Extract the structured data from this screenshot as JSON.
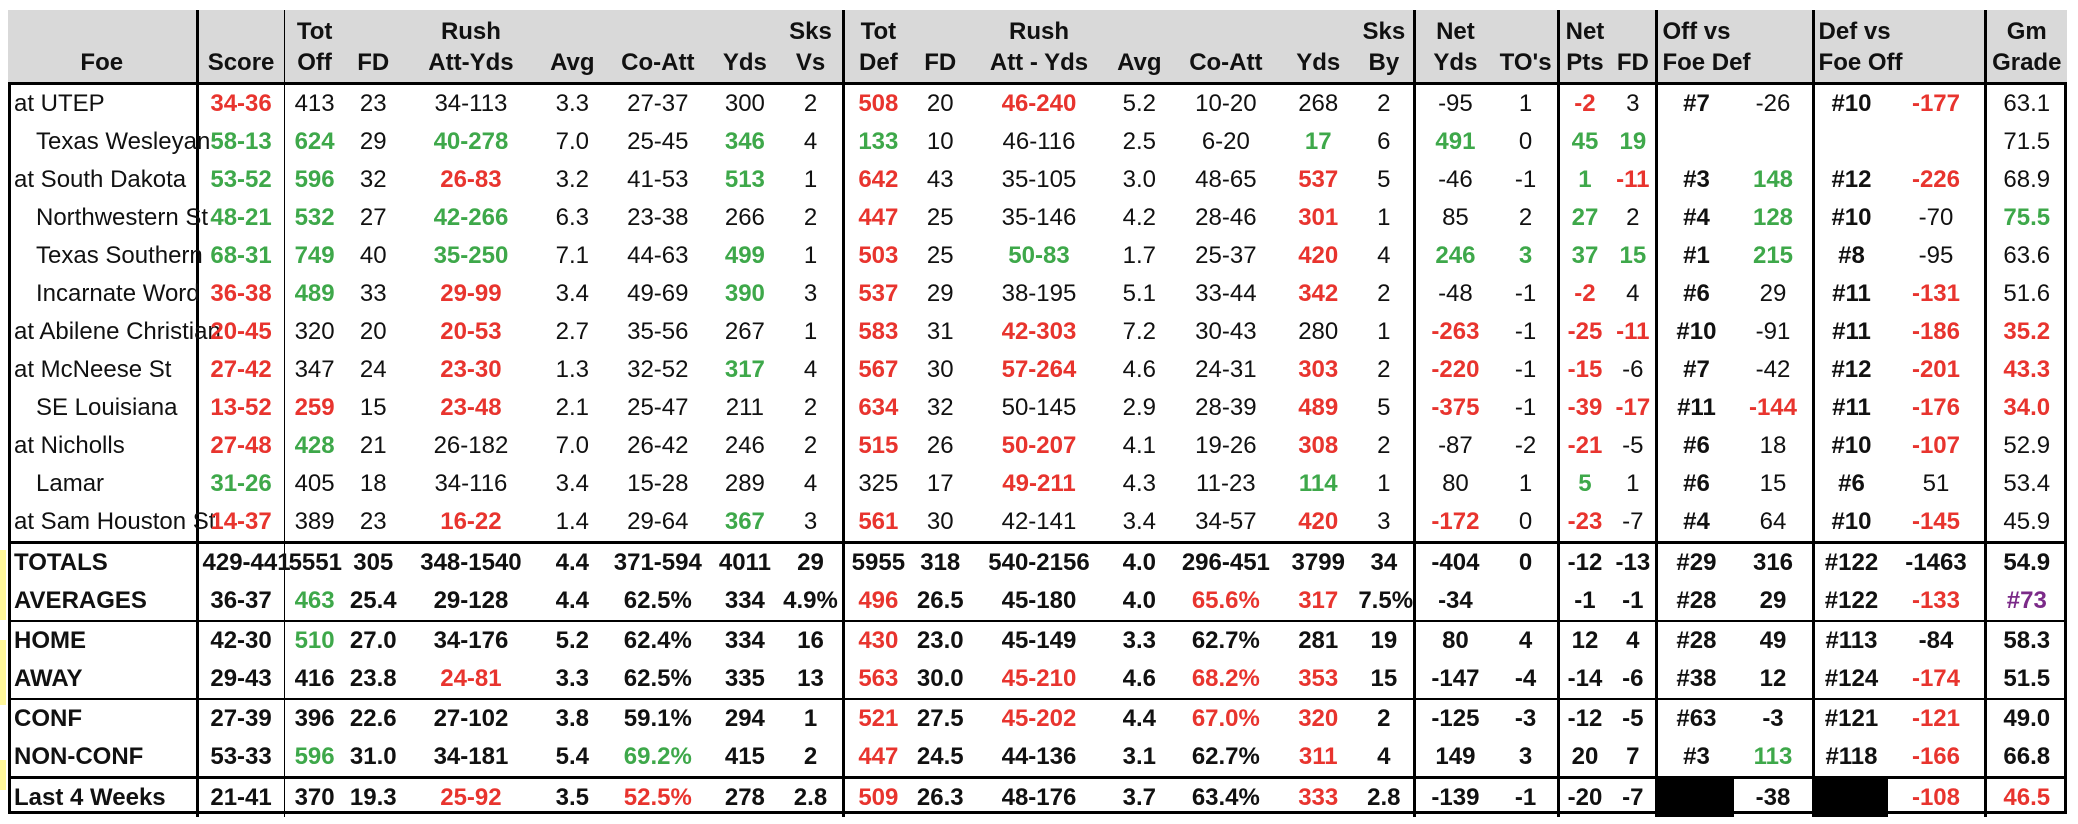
{
  "header": {
    "row1": [
      "",
      "",
      "Tot",
      "",
      "Rush",
      "",
      "",
      "",
      "Sks",
      "Tot",
      "",
      "Rush",
      "",
      "",
      "",
      "Sks",
      "Net",
      "",
      "Net",
      "",
      "Off vs",
      "",
      "Def vs",
      "",
      "Gm"
    ],
    "row2": [
      "Foe",
      "Score",
      "Off",
      "FD",
      "Att-Yds",
      "Avg",
      "Co-Att",
      "Yds",
      "Vs",
      "Def",
      "FD",
      "Att - Yds",
      "Avg",
      "Co-Att",
      "Yds",
      "By",
      "Yds",
      "TO's",
      "Pts",
      "FD",
      "Foe Def",
      "",
      "Foe Off",
      "",
      "Grade"
    ]
  },
  "games": [
    {
      "cells": [
        "at UTEP",
        "34-36",
        "413",
        "23",
        "34-113",
        "3.3",
        "27-37",
        "300",
        "2",
        "508",
        "20",
        "46-240",
        "5.2",
        "10-20",
        "268",
        "2",
        "-95",
        "1",
        "-2",
        "3",
        "#7",
        "-26",
        "#10",
        "-177",
        "63.1"
      ],
      "styles": [
        "",
        "r",
        "",
        "",
        "",
        "",
        "",
        "",
        "",
        "r",
        "",
        "r",
        "",
        "",
        "",
        "",
        "",
        "",
        "r",
        "",
        "b",
        "",
        "b",
        "r",
        ""
      ]
    },
    {
      "cells": [
        "Texas Wesleyan",
        "58-13",
        "624",
        "29",
        "40-278",
        "7.0",
        "25-45",
        "346",
        "4",
        "133",
        "10",
        "46-116",
        "2.5",
        "6-20",
        "17",
        "6",
        "491",
        "0",
        "45",
        "19",
        "",
        "",
        "",
        "",
        "71.5"
      ],
      "styles": [
        "",
        "g",
        "g",
        "",
        "g",
        "",
        "",
        "g",
        "",
        "g",
        "",
        "",
        "",
        "",
        "g",
        "",
        "g",
        "",
        "g",
        "g",
        "",
        "",
        "",
        "",
        ""
      ]
    },
    {
      "cells": [
        "at South Dakota",
        "53-52",
        "596",
        "32",
        "26-83",
        "3.2",
        "41-53",
        "513",
        "1",
        "642",
        "43",
        "35-105",
        "3.0",
        "48-65",
        "537",
        "5",
        "-46",
        "-1",
        "1",
        "-11",
        "#3",
        "148",
        "#12",
        "-226",
        "68.9"
      ],
      "styles": [
        "",
        "g",
        "g",
        "",
        "r",
        "",
        "",
        "g",
        "",
        "r",
        "",
        "",
        "",
        "",
        "r",
        "",
        "",
        "",
        "g",
        "r",
        "b",
        "g",
        "b",
        "r",
        ""
      ]
    },
    {
      "cells": [
        "Northwestern St",
        "48-21",
        "532",
        "27",
        "42-266",
        "6.3",
        "23-38",
        "266",
        "2",
        "447",
        "25",
        "35-146",
        "4.2",
        "28-46",
        "301",
        "1",
        "85",
        "2",
        "27",
        "2",
        "#4",
        "128",
        "#10",
        "-70",
        "75.5"
      ],
      "styles": [
        "",
        "g",
        "g",
        "",
        "g",
        "",
        "",
        "",
        "",
        "r",
        "",
        "",
        "",
        "",
        "r",
        "",
        "",
        "",
        "g",
        "",
        "b",
        "g",
        "b",
        "",
        "g"
      ]
    },
    {
      "cells": [
        "Texas Southern",
        "68-31",
        "749",
        "40",
        "35-250",
        "7.1",
        "44-63",
        "499",
        "1",
        "503",
        "25",
        "50-83",
        "1.7",
        "25-37",
        "420",
        "4",
        "246",
        "3",
        "37",
        "15",
        "#1",
        "215",
        "#8",
        "-95",
        "63.6"
      ],
      "styles": [
        "",
        "g",
        "g",
        "",
        "g",
        "",
        "",
        "g",
        "",
        "r",
        "",
        "g",
        "",
        "",
        "r",
        "",
        "g",
        "g",
        "g",
        "g",
        "b",
        "g",
        "b",
        "",
        ""
      ]
    },
    {
      "cells": [
        "Incarnate Word",
        "36-38",
        "489",
        "33",
        "29-99",
        "3.4",
        "49-69",
        "390",
        "3",
        "537",
        "29",
        "38-195",
        "5.1",
        "33-44",
        "342",
        "2",
        "-48",
        "-1",
        "-2",
        "4",
        "#6",
        "29",
        "#11",
        "-131",
        "51.6"
      ],
      "styles": [
        "",
        "r",
        "g",
        "",
        "r",
        "",
        "",
        "g",
        "",
        "r",
        "",
        "",
        "",
        "",
        "r",
        "",
        "",
        "",
        "r",
        "",
        "b",
        "",
        "b",
        "r",
        ""
      ]
    },
    {
      "cells": [
        "at Abilene Christian",
        "20-45",
        "320",
        "20",
        "20-53",
        "2.7",
        "35-56",
        "267",
        "1",
        "583",
        "31",
        "42-303",
        "7.2",
        "30-43",
        "280",
        "1",
        "-263",
        "-1",
        "-25",
        "-11",
        "#10",
        "-91",
        "#11",
        "-186",
        "35.2"
      ],
      "styles": [
        "",
        "r",
        "",
        "",
        "r",
        "",
        "",
        "",
        "",
        "r",
        "",
        "r",
        "",
        "",
        "",
        "",
        "r",
        "",
        "r",
        "r",
        "b",
        "",
        "b",
        "r",
        "r"
      ]
    },
    {
      "cells": [
        "at McNeese St",
        "27-42",
        "347",
        "24",
        "23-30",
        "1.3",
        "32-52",
        "317",
        "4",
        "567",
        "30",
        "57-264",
        "4.6",
        "24-31",
        "303",
        "2",
        "-220",
        "-1",
        "-15",
        "-6",
        "#7",
        "-42",
        "#12",
        "-201",
        "43.3"
      ],
      "styles": [
        "",
        "r",
        "",
        "",
        "r",
        "",
        "",
        "g",
        "",
        "r",
        "",
        "r",
        "",
        "",
        "r",
        "",
        "r",
        "",
        "r",
        "",
        "b",
        "",
        "b",
        "r",
        "r"
      ]
    },
    {
      "cells": [
        "SE Louisiana",
        "13-52",
        "259",
        "15",
        "23-48",
        "2.1",
        "25-47",
        "211",
        "2",
        "634",
        "32",
        "50-145",
        "2.9",
        "28-39",
        "489",
        "5",
        "-375",
        "-1",
        "-39",
        "-17",
        "#11",
        "-144",
        "#11",
        "-176",
        "34.0"
      ],
      "styles": [
        "",
        "r",
        "r",
        "",
        "r",
        "",
        "",
        "",
        "",
        "r",
        "",
        "",
        "",
        "",
        "r",
        "",
        "r",
        "",
        "r",
        "r",
        "b",
        "r",
        "b",
        "r",
        "r"
      ]
    },
    {
      "cells": [
        "at Nicholls",
        "27-48",
        "428",
        "21",
        "26-182",
        "7.0",
        "26-42",
        "246",
        "2",
        "515",
        "26",
        "50-207",
        "4.1",
        "19-26",
        "308",
        "2",
        "-87",
        "-2",
        "-21",
        "-5",
        "#6",
        "18",
        "#10",
        "-107",
        "52.9"
      ],
      "styles": [
        "",
        "r",
        "g",
        "",
        "",
        "",
        "",
        "",
        "",
        "r",
        "",
        "r",
        "",
        "",
        "r",
        "",
        "",
        "",
        "r",
        "",
        "b",
        "",
        "b",
        "r",
        ""
      ]
    },
    {
      "cells": [
        "Lamar",
        "31-26",
        "405",
        "18",
        "34-116",
        "3.4",
        "15-28",
        "289",
        "4",
        "325",
        "17",
        "49-211",
        "4.3",
        "11-23",
        "114",
        "1",
        "80",
        "1",
        "5",
        "1",
        "#6",
        "15",
        "#6",
        "51",
        "53.4"
      ],
      "styles": [
        "",
        "g",
        "",
        "",
        "",
        "",
        "",
        "",
        "",
        "",
        "",
        "r",
        "",
        "",
        "g",
        "",
        "",
        "",
        "g",
        "",
        "b",
        "",
        "b",
        "",
        ""
      ]
    },
    {
      "cells": [
        "at Sam Houston St",
        "14-37",
        "389",
        "23",
        "16-22",
        "1.4",
        "29-64",
        "367",
        "3",
        "561",
        "30",
        "42-141",
        "3.4",
        "34-57",
        "420",
        "3",
        "-172",
        "0",
        "-23",
        "-7",
        "#4",
        "64",
        "#10",
        "-145",
        "45.9"
      ],
      "styles": [
        "",
        "r",
        "",
        "",
        "r",
        "",
        "",
        "g",
        "",
        "r",
        "",
        "",
        "",
        "",
        "r",
        "",
        "r",
        "",
        "r",
        "",
        "b",
        "",
        "b",
        "r",
        ""
      ]
    }
  ],
  "summary": [
    {
      "cells": [
        "TOTALS",
        "429-441",
        "5551",
        "305",
        "348-1540",
        "4.4",
        "371-594",
        "4011",
        "29",
        "5955",
        "318",
        "540-2156",
        "4.0",
        "296-451",
        "3799",
        "34",
        "-404",
        "0",
        "-12",
        "-13",
        "#29",
        "316",
        "#122",
        "-1463",
        "54.9"
      ],
      "styles": [
        "",
        "",
        "",
        "",
        "",
        "",
        "",
        "",
        "",
        "",
        "",
        "",
        "",
        "",
        "",
        "",
        "",
        "",
        "",
        "",
        "",
        "",
        "",
        "",
        ""
      ]
    },
    {
      "cells": [
        "AVERAGES",
        "36-37",
        "463",
        "25.4",
        "29-128",
        "4.4",
        "62.5%",
        "334",
        "4.9%",
        "496",
        "26.5",
        "45-180",
        "4.0",
        "65.6%",
        "317",
        "7.5%",
        "-34",
        "",
        "-1",
        "-1",
        "#28",
        "29",
        "#122",
        "-133",
        "#73"
      ],
      "styles": [
        "",
        "",
        "g",
        "",
        "",
        "",
        "",
        "",
        "",
        "r",
        "",
        "",
        "",
        "r",
        "r",
        "",
        "",
        "",
        "",
        "",
        "",
        "",
        "",
        "r",
        "p"
      ]
    },
    {
      "cells": [
        "HOME",
        "42-30",
        "510",
        "27.0",
        "34-176",
        "5.2",
        "62.4%",
        "334",
        "16",
        "430",
        "23.0",
        "45-149",
        "3.3",
        "62.7%",
        "281",
        "19",
        "80",
        "4",
        "12",
        "4",
        "#28",
        "49",
        "#113",
        "-84",
        "58.3"
      ],
      "styles": [
        "",
        "",
        "g",
        "",
        "",
        "",
        "",
        "",
        "",
        "r",
        "",
        "",
        "",
        "",
        "",
        "",
        "",
        "",
        "",
        "",
        "",
        "",
        "",
        "",
        ""
      ]
    },
    {
      "cells": [
        "AWAY",
        "29-43",
        "416",
        "23.8",
        "24-81",
        "3.3",
        "62.5%",
        "335",
        "13",
        "563",
        "30.0",
        "45-210",
        "4.6",
        "68.2%",
        "353",
        "15",
        "-147",
        "-4",
        "-14",
        "-6",
        "#38",
        "12",
        "#124",
        "-174",
        "51.5"
      ],
      "styles": [
        "",
        "",
        "",
        "",
        "r",
        "",
        "",
        "",
        "",
        "r",
        "",
        "r",
        "",
        "r",
        "r",
        "",
        "",
        "",
        "",
        "",
        "",
        "",
        "",
        "r",
        ""
      ]
    },
    {
      "cells": [
        "CONF",
        "27-39",
        "396",
        "22.6",
        "27-102",
        "3.8",
        "59.1%",
        "294",
        "1",
        "521",
        "27.5",
        "45-202",
        "4.4",
        "67.0%",
        "320",
        "2",
        "-125",
        "-3",
        "-12",
        "-5",
        "#63",
        "-3",
        "#121",
        "-121",
        "49.0"
      ],
      "styles": [
        "",
        "",
        "",
        "",
        "",
        "",
        "",
        "",
        "",
        "r",
        "",
        "r",
        "",
        "r",
        "r",
        "",
        "",
        "",
        "",
        "",
        "",
        "",
        "",
        "r",
        ""
      ]
    },
    {
      "cells": [
        "NON-CONF",
        "53-33",
        "596",
        "31.0",
        "34-181",
        "5.4",
        "69.2%",
        "415",
        "2",
        "447",
        "24.5",
        "44-136",
        "3.1",
        "62.7%",
        "311",
        "4",
        "149",
        "3",
        "20",
        "7",
        "#3",
        "113",
        "#118",
        "-166",
        "66.8"
      ],
      "styles": [
        "",
        "",
        "g",
        "",
        "",
        "",
        "g",
        "",
        "",
        "r",
        "",
        "",
        "",
        "",
        "r",
        "",
        "",
        "",
        "",
        "",
        "",
        "g",
        "",
        "r",
        ""
      ]
    },
    {
      "cells": [
        "Last 4 Weeks",
        "21-41",
        "370",
        "19.3",
        "25-92",
        "3.5",
        "52.5%",
        "278",
        "2.8",
        "509",
        "26.3",
        "48-176",
        "3.7",
        "63.4%",
        "333",
        "2.8",
        "-139",
        "-1",
        "-20",
        "-7",
        "",
        "-38",
        "",
        "-108",
        "46.5"
      ],
      "styles": [
        "",
        "",
        "",
        "",
        "r",
        "",
        "r",
        "",
        "",
        "r",
        "",
        "",
        "",
        "",
        "r",
        "",
        "",
        "",
        "",
        "",
        "blk",
        "",
        "blk",
        "r",
        "r"
      ]
    }
  ]
}
